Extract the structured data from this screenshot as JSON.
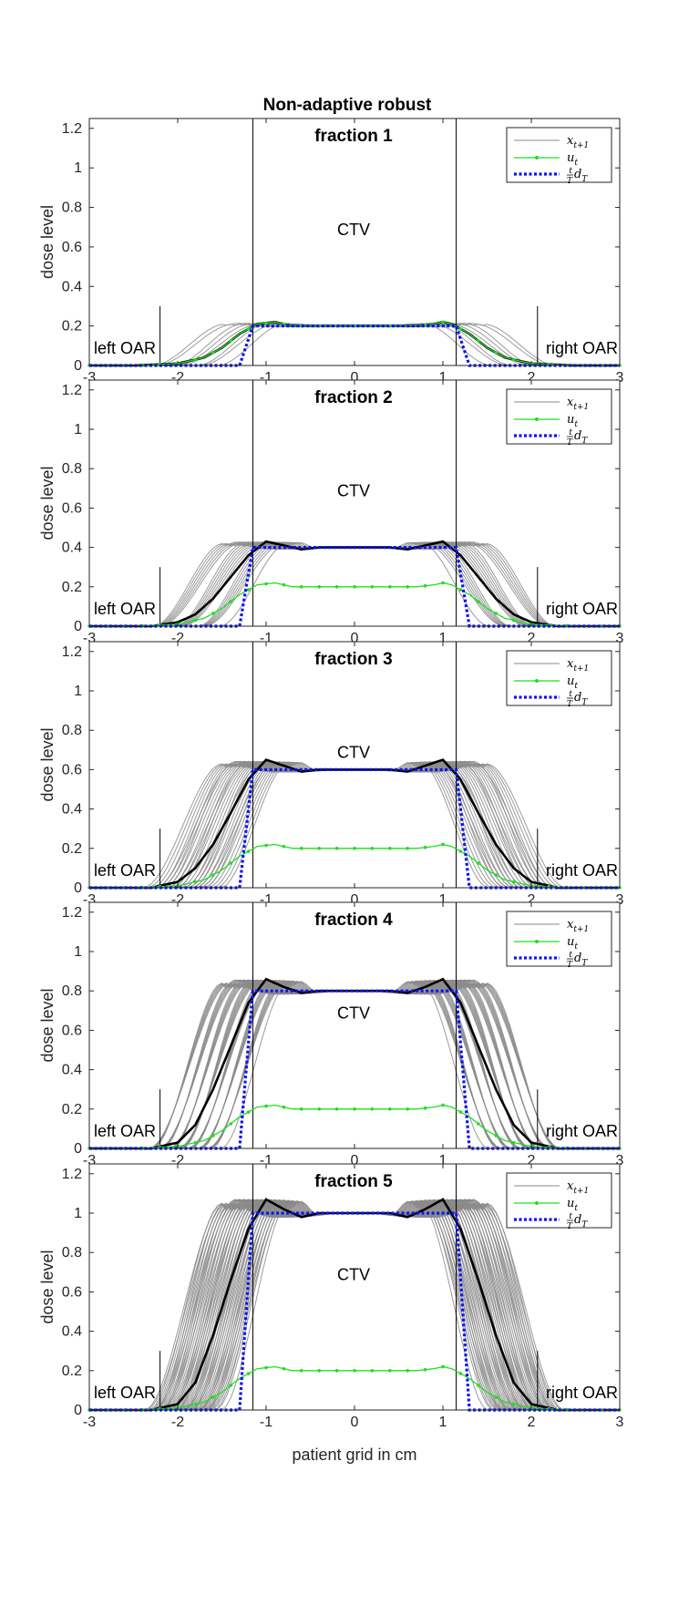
{
  "figure": {
    "title": "Non-adaptive robust",
    "xlabel": "patient grid in cm",
    "ylabel": "dose level"
  },
  "annotations": {
    "ctv": "CTV",
    "left_oar": "left OAR",
    "right_oar": "right OAR"
  },
  "legend": {
    "items": [
      {
        "label": "x_{t+1}",
        "color": "#808080",
        "style": "thin solid"
      },
      {
        "label": "u_t",
        "color": "#00e000",
        "style": "solid with point markers"
      },
      {
        "label": "t/T d_T",
        "color": "#0000ff",
        "style": "dotted thick"
      }
    ]
  },
  "colors": {
    "scenario": "#8a8a8a",
    "mean": "#000000",
    "control": "#22dd22",
    "target": "#0a14f0",
    "boundary": "#000000"
  },
  "chart_data": [
    {
      "type": "line",
      "panel_title": "fraction  1",
      "fraction": 1,
      "xlim": [
        -3,
        3
      ],
      "ylim": [
        0,
        1.25
      ],
      "xticks": [
        -3,
        -2,
        -1,
        0,
        1,
        2,
        3
      ],
      "yticks": [
        0,
        0.2,
        0.4,
        0.6,
        0.8,
        1,
        1.2
      ],
      "ctv_bounds": [
        -1.15,
        1.15
      ],
      "oar_markers": [
        -2.2,
        2.07
      ],
      "target_level": 0.2,
      "target_edges": [
        -1.3,
        1.3
      ],
      "control_level": 0.2,
      "control_profile": [
        [
          -3,
          0
        ],
        [
          -2.5,
          0
        ],
        [
          -2,
          0.01
        ],
        [
          -1.7,
          0.04
        ],
        [
          -1.5,
          0.09
        ],
        [
          -1.3,
          0.16
        ],
        [
          -1.1,
          0.21
        ],
        [
          -0.9,
          0.22
        ],
        [
          -0.7,
          0.2
        ],
        [
          -0.5,
          0.2
        ],
        [
          -0.3,
          0.2
        ],
        [
          -0.1,
          0.2
        ],
        [
          0.1,
          0.2
        ],
        [
          0.3,
          0.2
        ],
        [
          0.5,
          0.2
        ],
        [
          0.7,
          0.2
        ],
        [
          0.9,
          0.21
        ],
        [
          1.0,
          0.22
        ],
        [
          1.1,
          0.21
        ],
        [
          1.3,
          0.16
        ],
        [
          1.5,
          0.09
        ],
        [
          1.7,
          0.04
        ],
        [
          2,
          0.01
        ],
        [
          2.5,
          0
        ],
        [
          3,
          0
        ]
      ],
      "mean_profile": [
        [
          -3,
          0
        ],
        [
          -2.5,
          0
        ],
        [
          -2,
          0.01
        ],
        [
          -1.7,
          0.04
        ],
        [
          -1.5,
          0.09
        ],
        [
          -1.3,
          0.16
        ],
        [
          -1.1,
          0.21
        ],
        [
          -0.9,
          0.22
        ],
        [
          -0.7,
          0.2
        ],
        [
          -0.5,
          0.2
        ],
        [
          -0.3,
          0.2
        ],
        [
          -0.1,
          0.2
        ],
        [
          0.1,
          0.2
        ],
        [
          0.3,
          0.2
        ],
        [
          0.5,
          0.2
        ],
        [
          0.7,
          0.2
        ],
        [
          0.9,
          0.21
        ],
        [
          1.0,
          0.22
        ],
        [
          1.1,
          0.21
        ],
        [
          1.3,
          0.16
        ],
        [
          1.5,
          0.09
        ],
        [
          1.7,
          0.04
        ],
        [
          2,
          0.01
        ],
        [
          2.5,
          0
        ],
        [
          3,
          0
        ]
      ],
      "scenario_count": 8
    },
    {
      "type": "line",
      "panel_title": "fraction  2",
      "fraction": 2,
      "xlim": [
        -3,
        3
      ],
      "ylim": [
        0,
        1.25
      ],
      "xticks": [
        -3,
        -2,
        -1,
        0,
        1,
        2,
        3
      ],
      "yticks": [
        0,
        0.2,
        0.4,
        0.6,
        0.8,
        1,
        1.2
      ],
      "ctv_bounds": [
        -1.15,
        1.15
      ],
      "oar_markers": [
        -2.2,
        2.07
      ],
      "target_level": 0.4,
      "target_edges": [
        -1.3,
        1.3
      ],
      "control_level": 0.2,
      "control_profile": [
        [
          -3,
          0
        ],
        [
          -2.5,
          0
        ],
        [
          -2,
          0.01
        ],
        [
          -1.7,
          0.04
        ],
        [
          -1.5,
          0.09
        ],
        [
          -1.3,
          0.16
        ],
        [
          -1.1,
          0.21
        ],
        [
          -0.9,
          0.22
        ],
        [
          -0.7,
          0.2
        ],
        [
          -0.5,
          0.2
        ],
        [
          -0.3,
          0.2
        ],
        [
          -0.1,
          0.2
        ],
        [
          0.1,
          0.2
        ],
        [
          0.3,
          0.2
        ],
        [
          0.5,
          0.2
        ],
        [
          0.7,
          0.2
        ],
        [
          0.9,
          0.21
        ],
        [
          1.0,
          0.22
        ],
        [
          1.1,
          0.21
        ],
        [
          1.3,
          0.16
        ],
        [
          1.5,
          0.09
        ],
        [
          1.7,
          0.04
        ],
        [
          2,
          0.01
        ],
        [
          2.5,
          0
        ],
        [
          3,
          0
        ]
      ],
      "mean_profile": [
        [
          -3,
          0
        ],
        [
          -2.3,
          0
        ],
        [
          -2.0,
          0.02
        ],
        [
          -1.8,
          0.06
        ],
        [
          -1.6,
          0.14
        ],
        [
          -1.4,
          0.25
        ],
        [
          -1.2,
          0.36
        ],
        [
          -1.0,
          0.43
        ],
        [
          -0.8,
          0.41
        ],
        [
          -0.6,
          0.39
        ],
        [
          -0.4,
          0.4
        ],
        [
          -0.2,
          0.4
        ],
        [
          0,
          0.4
        ],
        [
          0.2,
          0.4
        ],
        [
          0.4,
          0.4
        ],
        [
          0.6,
          0.39
        ],
        [
          0.8,
          0.41
        ],
        [
          1.0,
          0.43
        ],
        [
          1.2,
          0.36
        ],
        [
          1.4,
          0.25
        ],
        [
          1.6,
          0.14
        ],
        [
          1.8,
          0.06
        ],
        [
          2.0,
          0.02
        ],
        [
          2.3,
          0
        ],
        [
          3,
          0
        ]
      ],
      "scenario_count": 20
    },
    {
      "type": "line",
      "panel_title": "fraction  3",
      "fraction": 3,
      "xlim": [
        -3,
        3
      ],
      "ylim": [
        0,
        1.25
      ],
      "xticks": [
        -3,
        -2,
        -1,
        0,
        1,
        2,
        3
      ],
      "yticks": [
        0,
        0.2,
        0.4,
        0.6,
        0.8,
        1,
        1.2
      ],
      "ctv_bounds": [
        -1.15,
        1.15
      ],
      "oar_markers": [
        -2.2,
        2.07
      ],
      "target_level": 0.6,
      "target_edges": [
        -1.3,
        1.3
      ],
      "control_level": 0.2,
      "control_profile": [
        [
          -3,
          0
        ],
        [
          -2.5,
          0
        ],
        [
          -2,
          0.01
        ],
        [
          -1.7,
          0.04
        ],
        [
          -1.5,
          0.09
        ],
        [
          -1.3,
          0.16
        ],
        [
          -1.1,
          0.21
        ],
        [
          -0.9,
          0.22
        ],
        [
          -0.7,
          0.2
        ],
        [
          -0.5,
          0.2
        ],
        [
          -0.3,
          0.2
        ],
        [
          -0.1,
          0.2
        ],
        [
          0.1,
          0.2
        ],
        [
          0.3,
          0.2
        ],
        [
          0.5,
          0.2
        ],
        [
          0.7,
          0.2
        ],
        [
          0.9,
          0.21
        ],
        [
          1.0,
          0.22
        ],
        [
          1.1,
          0.21
        ],
        [
          1.3,
          0.16
        ],
        [
          1.5,
          0.09
        ],
        [
          1.7,
          0.04
        ],
        [
          2,
          0.01
        ],
        [
          2.5,
          0
        ],
        [
          3,
          0
        ]
      ],
      "mean_profile": [
        [
          -3,
          0
        ],
        [
          -2.3,
          0
        ],
        [
          -2.0,
          0.03
        ],
        [
          -1.8,
          0.1
        ],
        [
          -1.6,
          0.22
        ],
        [
          -1.4,
          0.38
        ],
        [
          -1.2,
          0.55
        ],
        [
          -1.0,
          0.65
        ],
        [
          -0.8,
          0.62
        ],
        [
          -0.6,
          0.59
        ],
        [
          -0.4,
          0.6
        ],
        [
          -0.2,
          0.6
        ],
        [
          0,
          0.6
        ],
        [
          0.2,
          0.6
        ],
        [
          0.4,
          0.6
        ],
        [
          0.6,
          0.59
        ],
        [
          0.8,
          0.62
        ],
        [
          1.0,
          0.65
        ],
        [
          1.2,
          0.55
        ],
        [
          1.4,
          0.38
        ],
        [
          1.6,
          0.22
        ],
        [
          1.8,
          0.1
        ],
        [
          2.0,
          0.03
        ],
        [
          2.3,
          0
        ],
        [
          3,
          0
        ]
      ],
      "scenario_count": 32
    },
    {
      "type": "line",
      "panel_title": "fraction  4",
      "fraction": 4,
      "xlim": [
        -3,
        3
      ],
      "ylim": [
        0,
        1.25
      ],
      "xticks": [
        -3,
        -2,
        -1,
        0,
        1,
        2,
        3
      ],
      "yticks": [
        0,
        0.2,
        0.4,
        0.6,
        0.8,
        1,
        1.2
      ],
      "ctv_bounds": [
        -1.15,
        1.15
      ],
      "oar_markers": [
        -2.2,
        2.07
      ],
      "target_level": 0.8,
      "target_edges": [
        -1.3,
        1.3
      ],
      "control_level": 0.2,
      "control_profile": [
        [
          -3,
          0
        ],
        [
          -2.5,
          0
        ],
        [
          -2,
          0.01
        ],
        [
          -1.7,
          0.04
        ],
        [
          -1.5,
          0.09
        ],
        [
          -1.3,
          0.16
        ],
        [
          -1.1,
          0.21
        ],
        [
          -0.9,
          0.22
        ],
        [
          -0.7,
          0.2
        ],
        [
          -0.5,
          0.2
        ],
        [
          -0.3,
          0.2
        ],
        [
          -0.1,
          0.2
        ],
        [
          0.1,
          0.2
        ],
        [
          0.3,
          0.2
        ],
        [
          0.5,
          0.2
        ],
        [
          0.7,
          0.2
        ],
        [
          0.9,
          0.21
        ],
        [
          1.0,
          0.22
        ],
        [
          1.1,
          0.21
        ],
        [
          1.3,
          0.16
        ],
        [
          1.5,
          0.09
        ],
        [
          1.7,
          0.04
        ],
        [
          2,
          0.01
        ],
        [
          2.5,
          0
        ],
        [
          3,
          0
        ]
      ],
      "mean_profile": [
        [
          -3,
          0
        ],
        [
          -2.3,
          0
        ],
        [
          -2.0,
          0.03
        ],
        [
          -1.8,
          0.12
        ],
        [
          -1.6,
          0.3
        ],
        [
          -1.4,
          0.52
        ],
        [
          -1.2,
          0.74
        ],
        [
          -1.0,
          0.86
        ],
        [
          -0.8,
          0.82
        ],
        [
          -0.6,
          0.79
        ],
        [
          -0.4,
          0.8
        ],
        [
          -0.2,
          0.8
        ],
        [
          0,
          0.8
        ],
        [
          0.2,
          0.8
        ],
        [
          0.4,
          0.8
        ],
        [
          0.6,
          0.79
        ],
        [
          0.8,
          0.82
        ],
        [
          1.0,
          0.86
        ],
        [
          1.2,
          0.74
        ],
        [
          1.4,
          0.52
        ],
        [
          1.6,
          0.3
        ],
        [
          1.8,
          0.12
        ],
        [
          2.0,
          0.03
        ],
        [
          2.3,
          0
        ],
        [
          3,
          0
        ]
      ],
      "scenario_count": 44
    },
    {
      "type": "line",
      "panel_title": "fraction  5",
      "fraction": 5,
      "xlim": [
        -3,
        3
      ],
      "ylim": [
        0,
        1.25
      ],
      "xticks": [
        -3,
        -2,
        -1,
        0,
        1,
        2,
        3
      ],
      "yticks": [
        0,
        0.2,
        0.4,
        0.6,
        0.8,
        1,
        1.2
      ],
      "ctv_bounds": [
        -1.15,
        1.15
      ],
      "oar_markers": [
        -2.2,
        2.07
      ],
      "target_level": 1.0,
      "target_edges": [
        -1.3,
        1.3
      ],
      "control_level": 0.2,
      "control_profile": [
        [
          -3,
          0
        ],
        [
          -2.5,
          0
        ],
        [
          -2,
          0.01
        ],
        [
          -1.7,
          0.04
        ],
        [
          -1.5,
          0.09
        ],
        [
          -1.3,
          0.16
        ],
        [
          -1.1,
          0.21
        ],
        [
          -0.9,
          0.22
        ],
        [
          -0.7,
          0.2
        ],
        [
          -0.5,
          0.2
        ],
        [
          -0.3,
          0.2
        ],
        [
          -0.1,
          0.2
        ],
        [
          0.1,
          0.2
        ],
        [
          0.3,
          0.2
        ],
        [
          0.5,
          0.2
        ],
        [
          0.7,
          0.2
        ],
        [
          0.9,
          0.21
        ],
        [
          1.0,
          0.22
        ],
        [
          1.1,
          0.21
        ],
        [
          1.3,
          0.16
        ],
        [
          1.5,
          0.09
        ],
        [
          1.7,
          0.04
        ],
        [
          2,
          0.01
        ],
        [
          2.5,
          0
        ],
        [
          3,
          0
        ]
      ],
      "mean_profile": [
        [
          -3,
          0
        ],
        [
          -2.3,
          0
        ],
        [
          -2.0,
          0.03
        ],
        [
          -1.8,
          0.14
        ],
        [
          -1.6,
          0.38
        ],
        [
          -1.4,
          0.66
        ],
        [
          -1.2,
          0.92
        ],
        [
          -1.0,
          1.07
        ],
        [
          -0.8,
          1.02
        ],
        [
          -0.6,
          0.98
        ],
        [
          -0.4,
          1.0
        ],
        [
          -0.2,
          1.0
        ],
        [
          0,
          1.0
        ],
        [
          0.2,
          1.0
        ],
        [
          0.4,
          1.0
        ],
        [
          0.6,
          0.98
        ],
        [
          0.8,
          1.02
        ],
        [
          1.0,
          1.07
        ],
        [
          1.2,
          0.92
        ],
        [
          1.4,
          0.66
        ],
        [
          1.6,
          0.38
        ],
        [
          1.8,
          0.14
        ],
        [
          2.0,
          0.03
        ],
        [
          2.3,
          0
        ],
        [
          3,
          0
        ]
      ],
      "scenario_count": 60
    }
  ]
}
